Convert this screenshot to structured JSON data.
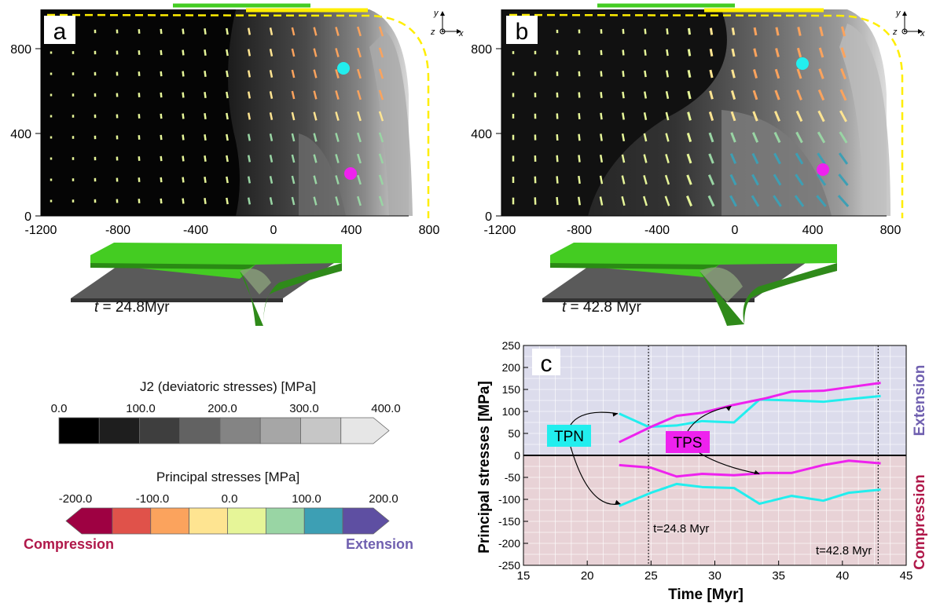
{
  "colors": {
    "green_plate": "#44cc22",
    "yellow": "#ffee00",
    "cyan": "#22eeee",
    "magenta": "#ee22ee",
    "compression": "#b0184a",
    "extension": "#7060b0",
    "compression_bg": "#e8d2d6",
    "extension_bg": "#dcdcec"
  },
  "panel_a": {
    "letter": "a",
    "x_ticks": [
      "-1200",
      "-800",
      "-400",
      "0",
      "400",
      "800"
    ],
    "y_ticks": [
      "800",
      "400",
      "0"
    ],
    "time_italic": "t",
    "time_value": " = 24.8Myr",
    "axes_icon": {
      "y": "y",
      "z": "z",
      "x": "x"
    }
  },
  "panel_b": {
    "letter": "b",
    "x_ticks": [
      "-1200",
      "-800",
      "-400",
      "0",
      "400",
      "800"
    ],
    "y_ticks": [
      "800",
      "400",
      "0"
    ],
    "time_italic": "t",
    "time_value": " = 42.8 Myr",
    "axes_icon": {
      "y": "y",
      "z": "z",
      "x": "x"
    }
  },
  "colorbar_j2": {
    "title": "J2 (deviatoric stresses) [MPa]",
    "ticks": [
      "0.0",
      "100.0",
      "200.0",
      "300.0",
      "400.0"
    ],
    "swatches": [
      "#000000",
      "#1e1e1e",
      "#3e3e3e",
      "#626262",
      "#848484",
      "#a6a6a6",
      "#c6c6c6",
      "#e6e6e6"
    ]
  },
  "colorbar_ps": {
    "title": "Principal stresses [MPa]",
    "ticks": [
      "-200.0",
      "-100.0",
      "0.0",
      "100.0",
      "200.0"
    ],
    "swatches": [
      "#9e0142",
      "#e0524a",
      "#fba35d",
      "#fee491",
      "#e6f598",
      "#99d5a4",
      "#3d9fb4",
      "#5e4fa2"
    ],
    "compression_label": "Compression",
    "extension_label": "Extension"
  },
  "chart_data": {
    "type": "line",
    "panel_letter": "c",
    "xlabel": "Time [Myr]",
    "ylabel": "Principal stresses [MPa]",
    "xlim": [
      15,
      45
    ],
    "ylim": [
      -250,
      250
    ],
    "x_ticks": [
      15,
      20,
      25,
      30,
      35,
      40,
      45
    ],
    "y_ticks": [
      250,
      200,
      150,
      100,
      50,
      0,
      -50,
      -100,
      -150,
      -200,
      -250
    ],
    "grid": true,
    "right_label_top": "Extension",
    "right_label_bottom": "Compression",
    "series": [
      {
        "name": "TPN",
        "color": "#22eeee",
        "part": "extension",
        "x": [
          22.5,
          24.8,
          27,
          29,
          31.5,
          33.5,
          36,
          38.5,
          40.5,
          43
        ],
        "y": [
          95,
          65,
          68,
          78,
          75,
          127,
          125,
          122,
          128,
          135
        ]
      },
      {
        "name": "TPN",
        "color": "#22eeee",
        "part": "compression",
        "x": [
          22.5,
          25,
          27,
          29,
          31.5,
          33.5,
          36,
          38.5,
          40.5,
          43
        ],
        "y": [
          -115,
          -85,
          -65,
          -72,
          -74,
          -110,
          -92,
          -103,
          -85,
          -78
        ]
      },
      {
        "name": "TPS",
        "color": "#ee22ee",
        "part": "extension",
        "x": [
          22.5,
          25,
          27,
          29,
          31.5,
          34,
          36,
          38.5,
          40.5,
          43
        ],
        "y": [
          30,
          65,
          90,
          97,
          115,
          130,
          145,
          147,
          155,
          165
        ]
      },
      {
        "name": "TPS",
        "color": "#ee22ee",
        "part": "compression",
        "x": [
          22.5,
          25,
          27,
          29,
          31.5,
          34,
          36,
          38.5,
          40.5,
          43
        ],
        "y": [
          -22,
          -28,
          -48,
          -42,
          -45,
          -40,
          -40,
          -22,
          -12,
          -18
        ]
      }
    ],
    "vlines": [
      {
        "x": 24.8,
        "label": "t=24.8 Myr"
      },
      {
        "x": 42.8,
        "label": "t=42.8 Myr"
      }
    ],
    "annotations": [
      {
        "text": "TPN",
        "color": "#22eeee"
      },
      {
        "text": "TPS",
        "color": "#ee22ee"
      }
    ]
  }
}
